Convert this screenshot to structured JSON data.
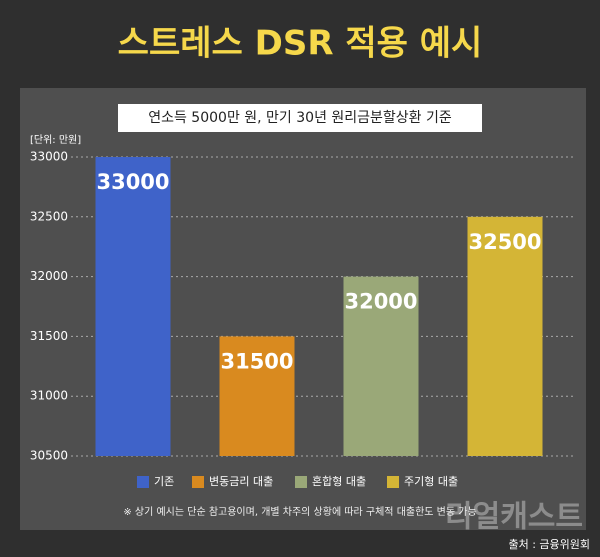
{
  "chart_data": {
    "type": "bar",
    "title": "스트레스 DSR 적용 예시",
    "subtitle": "연소득 5000만 원, 만기 30년 원리금분할상환 기준",
    "unit_label": "[단위: 만원]",
    "categories": [
      "기존",
      "변동금리 대출",
      "혼합형 대출",
      "주기형 대출"
    ],
    "values": [
      33000,
      31500,
      32000,
      32500
    ],
    "colors": [
      "#3f63c9",
      "#d98a1f",
      "#9aa878",
      "#d4b536"
    ],
    "ylim": [
      30500,
      33000
    ],
    "yticks": [
      30500,
      31000,
      31500,
      32000,
      32500,
      33000
    ],
    "grid": true,
    "legend": "bottom",
    "note": "※ 상기 예시는 단순 참고용이며, 개별 차주의 상황에 따라 구체적 대출한도 변동 가능",
    "source": "출처 : 금융위원회",
    "watermark": "리얼캐스트"
  }
}
